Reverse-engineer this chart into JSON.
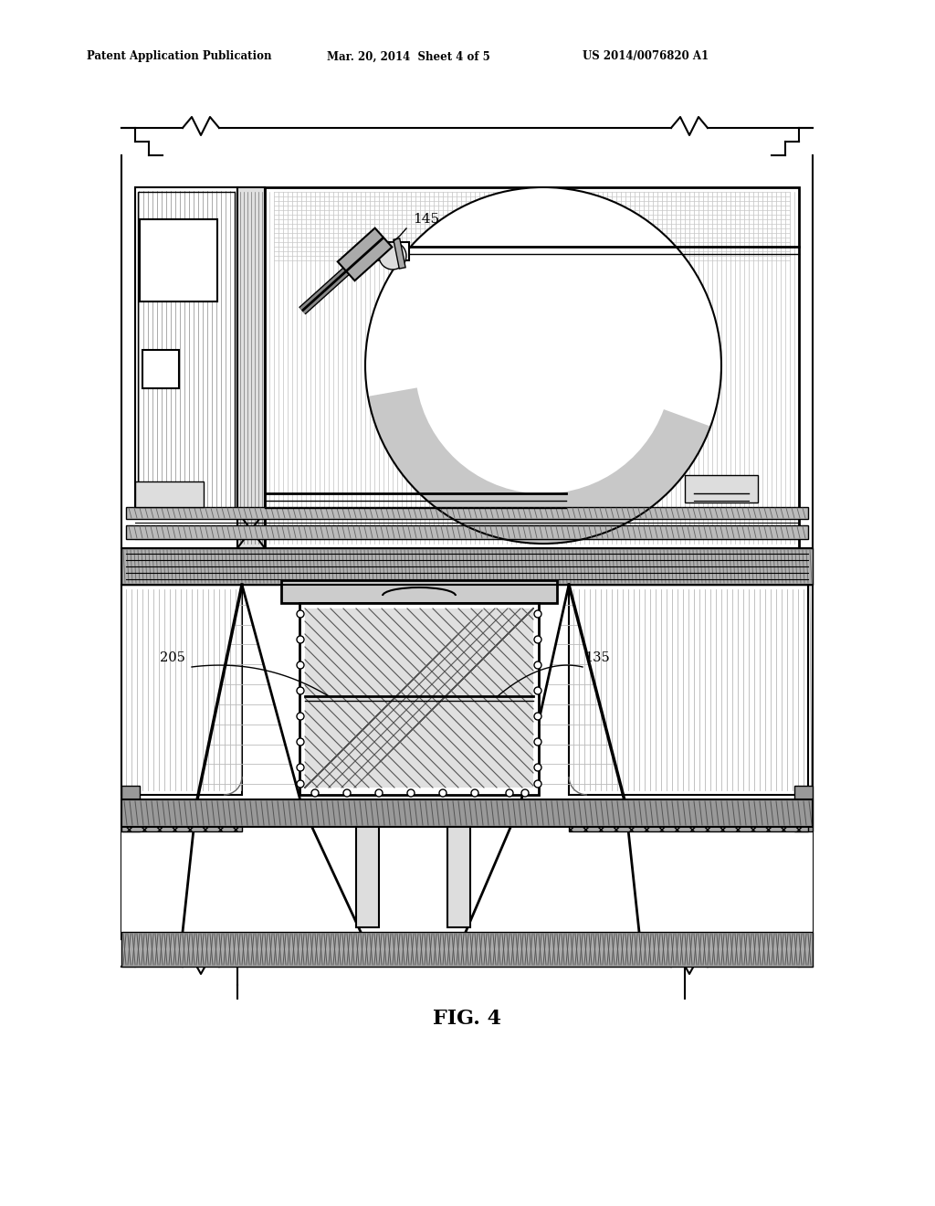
{
  "bg_color": "#ffffff",
  "header_left": "Patent Application Publication",
  "header_center": "Mar. 20, 2014  Sheet 4 of 5",
  "header_right": "US 2014/0076820 A1",
  "figure_label": "FIG. 4",
  "label_145": "145",
  "label_205": "205",
  "label_135": "135"
}
